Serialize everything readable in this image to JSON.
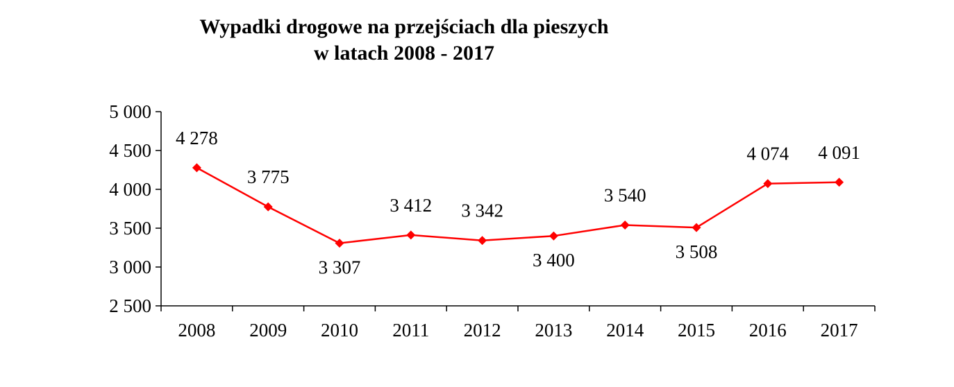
{
  "chart_data": {
    "type": "line",
    "title_lines": [
      "Wypadki drogowe na przejściach dla pieszych",
      "w latach 2008 - 2017"
    ],
    "xlabel": "",
    "ylabel": "",
    "categories": [
      "2008",
      "2009",
      "2010",
      "2011",
      "2012",
      "2013",
      "2014",
      "2015",
      "2016",
      "2017"
    ],
    "series": [
      {
        "values": [
          4278,
          3775,
          3307,
          3412,
          3342,
          3400,
          3540,
          3508,
          4074,
          4091
        ],
        "value_labels": [
          "4 278",
          "3 775",
          "3 307",
          "3 412",
          "3 342",
          "3 400",
          "3 540",
          "3 508",
          "4 074",
          "4 091"
        ],
        "label_positions": [
          "above",
          "above",
          "below",
          "above",
          "above",
          "below",
          "above",
          "below",
          "above",
          "above"
        ],
        "color": "#ff0000",
        "marker": "diamond"
      }
    ],
    "ylim": [
      2500,
      5000
    ],
    "yticks": [
      2500,
      3000,
      3500,
      4000,
      4500,
      5000
    ],
    "ytick_labels": [
      "2 500",
      "3 000",
      "3 500",
      "4 000",
      "4 500",
      "5 000"
    ],
    "grid": false,
    "legend": "none",
    "axis_color": "#000000"
  }
}
